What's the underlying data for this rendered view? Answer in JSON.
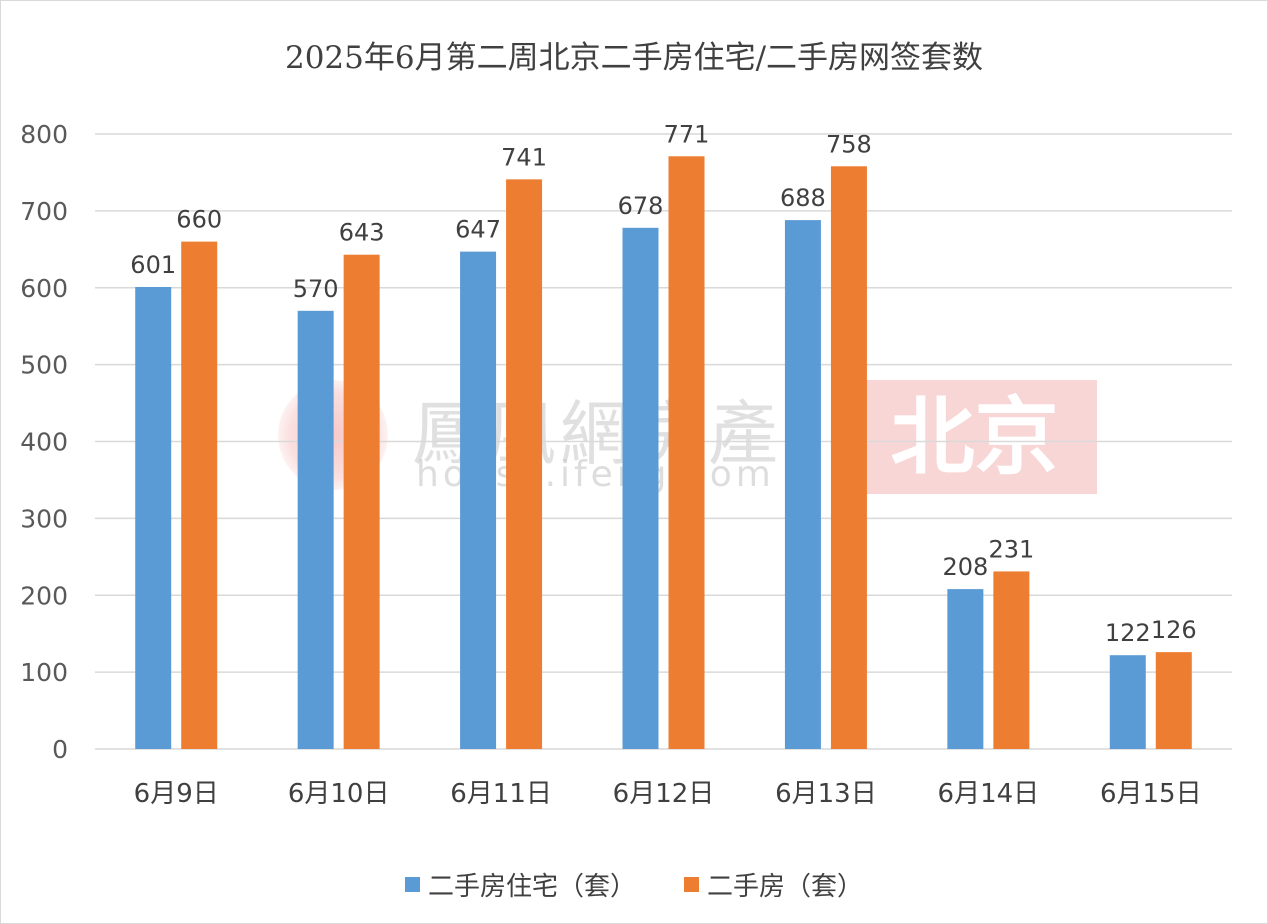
{
  "chart_data": {
    "type": "bar",
    "title": "2025年6月第二周北京二手房住宅/二手房网签套数",
    "categories": [
      "6月9日",
      "6月10日",
      "6月11日",
      "6月12日",
      "6月13日",
      "6月14日",
      "6月15日"
    ],
    "series": [
      {
        "name": "二手房住宅（套）",
        "color": "#5b9bd5",
        "values": [
          601,
          570,
          647,
          678,
          688,
          208,
          122
        ]
      },
      {
        "name": "二手房（套）",
        "color": "#ed7d31",
        "values": [
          660,
          643,
          741,
          771,
          758,
          231,
          126
        ]
      }
    ],
    "ylim": [
      0,
      800
    ],
    "yticks": [
      0,
      100,
      200,
      300,
      400,
      500,
      600,
      700,
      800
    ],
    "grid": true,
    "legend_position": "bottom"
  },
  "watermark": {
    "brand": "鳳凰網房產",
    "url": "house.ifeng.com",
    "city": "北京"
  }
}
